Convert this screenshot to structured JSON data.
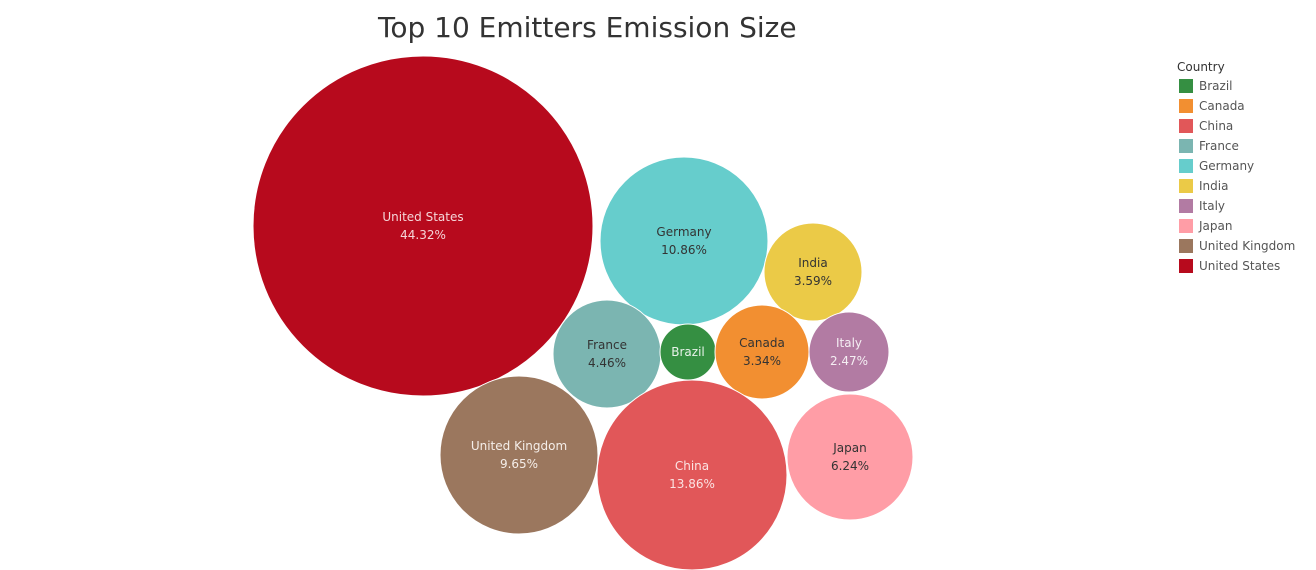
{
  "chart_data": {
    "type": "bubble",
    "title": "Top 10 Emitters Emission Size",
    "legend_title": "Country",
    "legend_position": "right",
    "bubbles": [
      {
        "name": "United States",
        "value": 44.32,
        "display": "44.32%",
        "color": "#b70a1d",
        "text_color": "#f5d6d9"
      },
      {
        "name": "Germany",
        "value": 10.86,
        "display": "10.86%",
        "color": "#66cdcc",
        "text_color": "#333333"
      },
      {
        "name": "India",
        "value": 3.59,
        "display": "3.59%",
        "color": "#ebca47",
        "text_color": "#333333"
      },
      {
        "name": "France",
        "value": 4.46,
        "display": "4.46%",
        "color": "#7bb5b1",
        "text_color": "#333333"
      },
      {
        "name": "Brazil",
        "value": null,
        "display": "",
        "color": "#358f42",
        "text_color": "#e8f3ea"
      },
      {
        "name": "Canada",
        "value": 3.34,
        "display": "3.34%",
        "color": "#f28f31",
        "text_color": "#333333"
      },
      {
        "name": "Italy",
        "value": 2.47,
        "display": "2.47%",
        "color": "#b27ba3",
        "text_color": "#f5eef3"
      },
      {
        "name": "United Kingdom",
        "value": 9.65,
        "display": "9.65%",
        "color": "#9b775e",
        "text_color": "#f5eee9"
      },
      {
        "name": "China",
        "value": 13.86,
        "display": "13.86%",
        "color": "#e15759",
        "text_color": "#fbe3e3"
      },
      {
        "name": "Japan",
        "value": 6.24,
        "display": "6.24%",
        "color": "#ff9da6",
        "text_color": "#333333"
      }
    ],
    "legend": [
      {
        "label": "Brazil",
        "color": "#358f42"
      },
      {
        "label": "Canada",
        "color": "#f28f31"
      },
      {
        "label": "China",
        "color": "#e15759"
      },
      {
        "label": "France",
        "color": "#7bb5b1"
      },
      {
        "label": "Germany",
        "color": "#66cdcc"
      },
      {
        "label": "India",
        "color": "#ebca47"
      },
      {
        "label": "Italy",
        "color": "#b27ba3"
      },
      {
        "label": "Japan",
        "color": "#ff9da6"
      },
      {
        "label": "United Kingdom",
        "color": "#9b775e"
      },
      {
        "label": "United States",
        "color": "#b70a1d"
      }
    ]
  }
}
